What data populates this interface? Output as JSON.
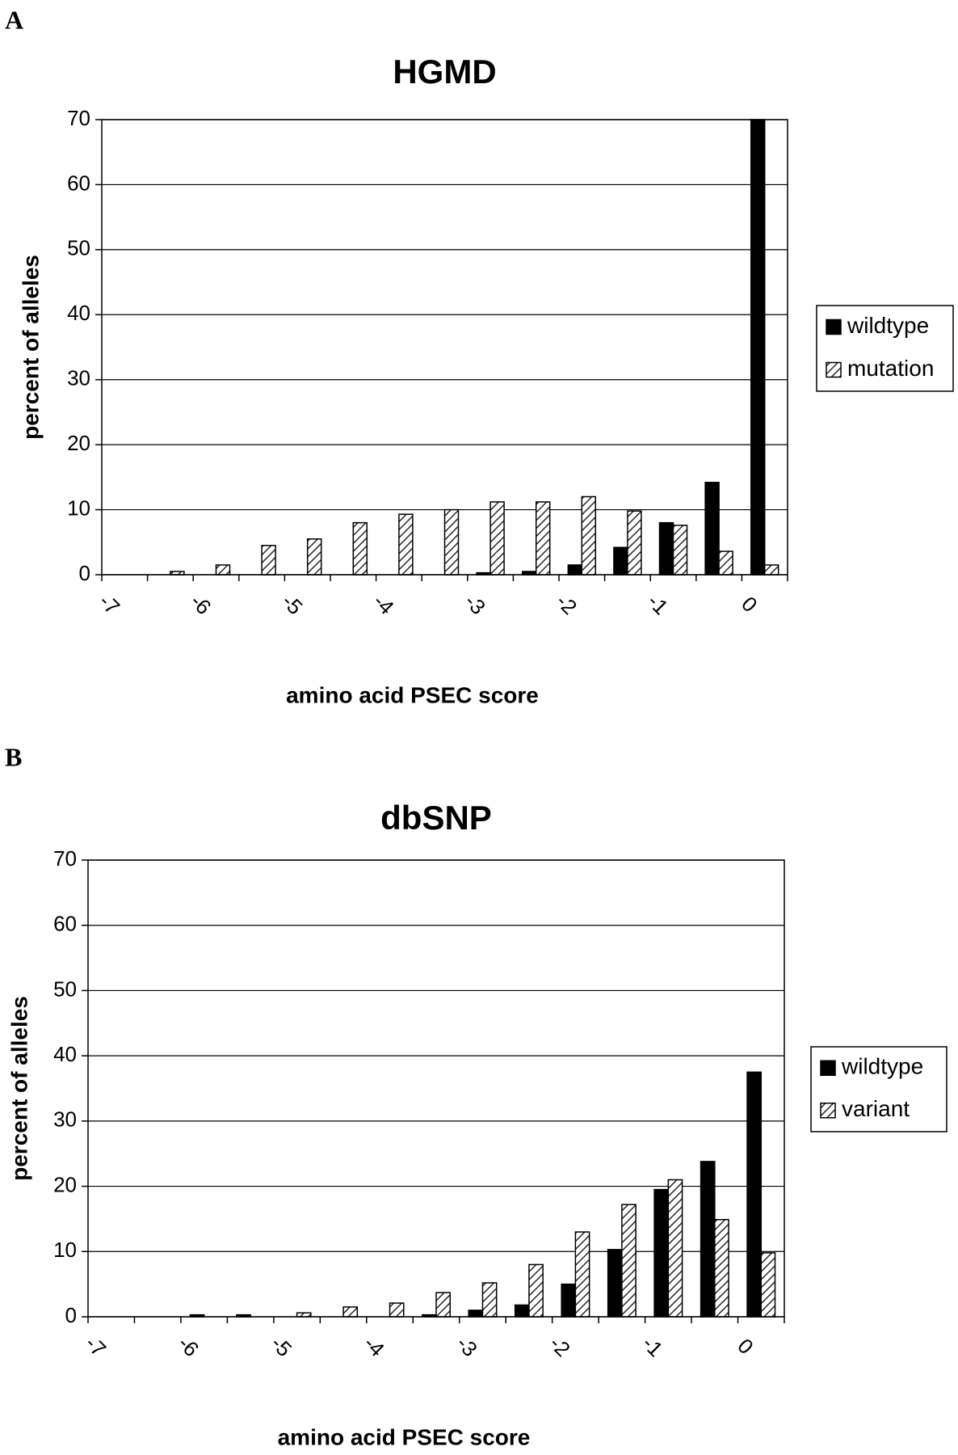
{
  "chart_data": [
    {
      "type": "bar",
      "panel": "A",
      "title": "HGMD",
      "xlabel": "amino acid PSEC score",
      "ylabel": "percent of alleles",
      "categories": [
        "-7",
        null,
        "-6",
        null,
        "-5",
        null,
        "-4",
        null,
        "-3",
        null,
        "-2",
        null,
        "-1",
        null,
        "0"
      ],
      "series": [
        {
          "name": "wildtype",
          "color": "#000000",
          "values": [
            0,
            0,
            0,
            0,
            0,
            0,
            0,
            0,
            0.3,
            0.5,
            1.5,
            4.2,
            8,
            14.2,
            70
          ]
        },
        {
          "name": "mutation",
          "color": "#ffffff",
          "pattern": "hatch",
          "values": [
            0,
            0.5,
            1.5,
            4.5,
            5.5,
            8,
            9.3,
            10,
            11.2,
            11.2,
            12,
            9.8,
            7.6,
            3.6,
            1.5
          ]
        }
      ],
      "ylim": [
        0,
        70
      ],
      "yticks": [
        0,
        10,
        20,
        30,
        40,
        50,
        60,
        70
      ],
      "grid": true,
      "legend": "right"
    },
    {
      "type": "bar",
      "panel": "B",
      "title": "dbSNP",
      "xlabel": "amino acid PSEC score",
      "ylabel": "percent of alleles",
      "categories": [
        "-7",
        null,
        "-6",
        null,
        "-5",
        null,
        "-4",
        null,
        "-3",
        null,
        "-2",
        null,
        "-1",
        null,
        "0"
      ],
      "series": [
        {
          "name": "wildtype",
          "color": "#000000",
          "values": [
            0,
            0,
            0.3,
            0.3,
            0,
            0,
            0,
            0.3,
            1,
            1.8,
            5,
            10.3,
            19.5,
            23.8,
            37.5
          ]
        },
        {
          "name": "variant",
          "color": "#ffffff",
          "pattern": "hatch",
          "values": [
            0,
            0,
            0,
            0,
            0.6,
            1.5,
            2.1,
            3.7,
            5.2,
            8,
            13,
            17.2,
            21,
            14.9,
            9.8
          ]
        }
      ],
      "ylim": [
        0,
        70
      ],
      "yticks": [
        0,
        10,
        20,
        30,
        40,
        50,
        60,
        70
      ],
      "grid": true,
      "legend": "right"
    }
  ]
}
